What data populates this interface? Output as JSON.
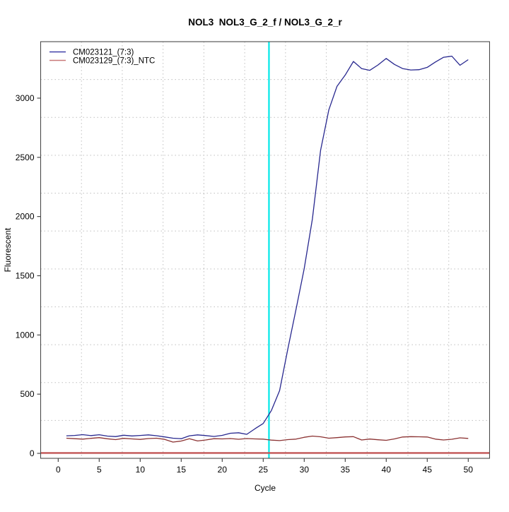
{
  "page": {
    "background": "#ffffff"
  },
  "chart_data": {
    "type": "line",
    "title": "NOL3  NOL3_G_2_f / NOL3_G_2_r",
    "xlabel": "Cycle",
    "ylabel": "Fluorescent",
    "x_ticks": [
      0,
      5,
      10,
      15,
      20,
      25,
      30,
      35,
      40,
      45,
      50
    ],
    "y_ticks": [
      0,
      500,
      1000,
      1500,
      2000,
      2500,
      3000
    ],
    "xlim": [
      -2.14,
      52.6
    ],
    "ylim": [
      -42,
      3477
    ],
    "grid": {
      "nx": 11,
      "ny": 11,
      "style": "dotted",
      "color": "#bfbfbf"
    },
    "cycles": [
      1,
      2,
      3,
      4,
      5,
      6,
      7,
      8,
      9,
      10,
      11,
      12,
      13,
      14,
      15,
      16,
      17,
      18,
      19,
      20,
      21,
      22,
      23,
      24,
      25,
      26,
      27,
      28,
      29,
      30,
      31,
      32,
      33,
      34,
      35,
      36,
      37,
      38,
      39,
      40,
      41,
      42,
      43,
      44,
      45,
      46,
      47,
      48,
      49,
      50
    ],
    "series": [
      {
        "name": "CM023121_(7:3)",
        "color": "#28288F",
        "legend_color": "#4040A8",
        "values": [
          148,
          151,
          158,
          150,
          157,
          146,
          142,
          153,
          147,
          151,
          156,
          149,
          139,
          128,
          124,
          148,
          156,
          150,
          143,
          152,
          170,
          174,
          161,
          208,
          252,
          362,
          530,
          880,
          1215,
          1560,
          1980,
          2560,
          2900,
          3100,
          3195,
          3310,
          3250,
          3235,
          3280,
          3335,
          3285,
          3250,
          3238,
          3240,
          3260,
          3305,
          3345,
          3355,
          3278,
          3325
        ]
      },
      {
        "name": "CM023129_(7:3)_NTC",
        "color": "#8B3232",
        "legend_color": "#C87878",
        "values": [
          128,
          124,
          120,
          127,
          133,
          123,
          116,
          127,
          122,
          118,
          125,
          128,
          118,
          95,
          104,
          123,
          105,
          113,
          124,
          122,
          125,
          119,
          125,
          122,
          120,
          112,
          108,
          116,
          120,
          136,
          146,
          140,
          128,
          133,
          139,
          141,
          113,
          121,
          115,
          110,
          122,
          138,
          141,
          140,
          138,
          120,
          113,
          119,
          131,
          126
        ]
      }
    ],
    "threshold_line": {
      "y": 3,
      "color": "#C25555"
    },
    "ct_line": {
      "x": 25.7,
      "color": "#00E8E8"
    },
    "legend": {
      "position": "top-left"
    },
    "axis_color": "#3a3a3a"
  }
}
